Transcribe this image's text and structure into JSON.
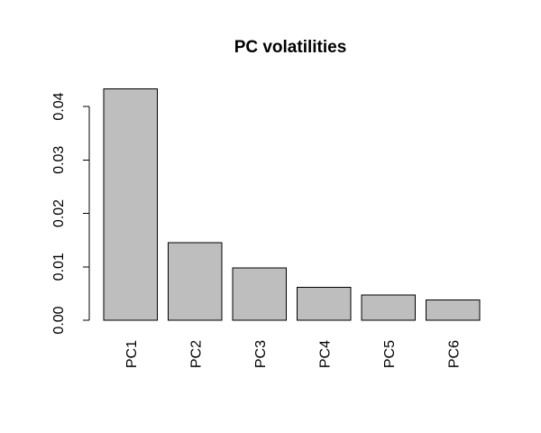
{
  "chart_data": {
    "type": "bar",
    "title": "PC volatilities",
    "xlabel": "",
    "ylabel": "",
    "categories": [
      "PC1",
      "PC2",
      "PC3",
      "PC4",
      "PC5",
      "PC6"
    ],
    "values": [
      0.0433,
      0.0145,
      0.0098,
      0.0062,
      0.0047,
      0.0038
    ],
    "ylim": [
      0,
      0.04
    ],
    "y_ticks": [
      "0.00",
      "0.01",
      "0.02",
      "0.03",
      "0.04"
    ],
    "bar_color": "#bebebe",
    "grid": false,
    "legend": "none"
  }
}
